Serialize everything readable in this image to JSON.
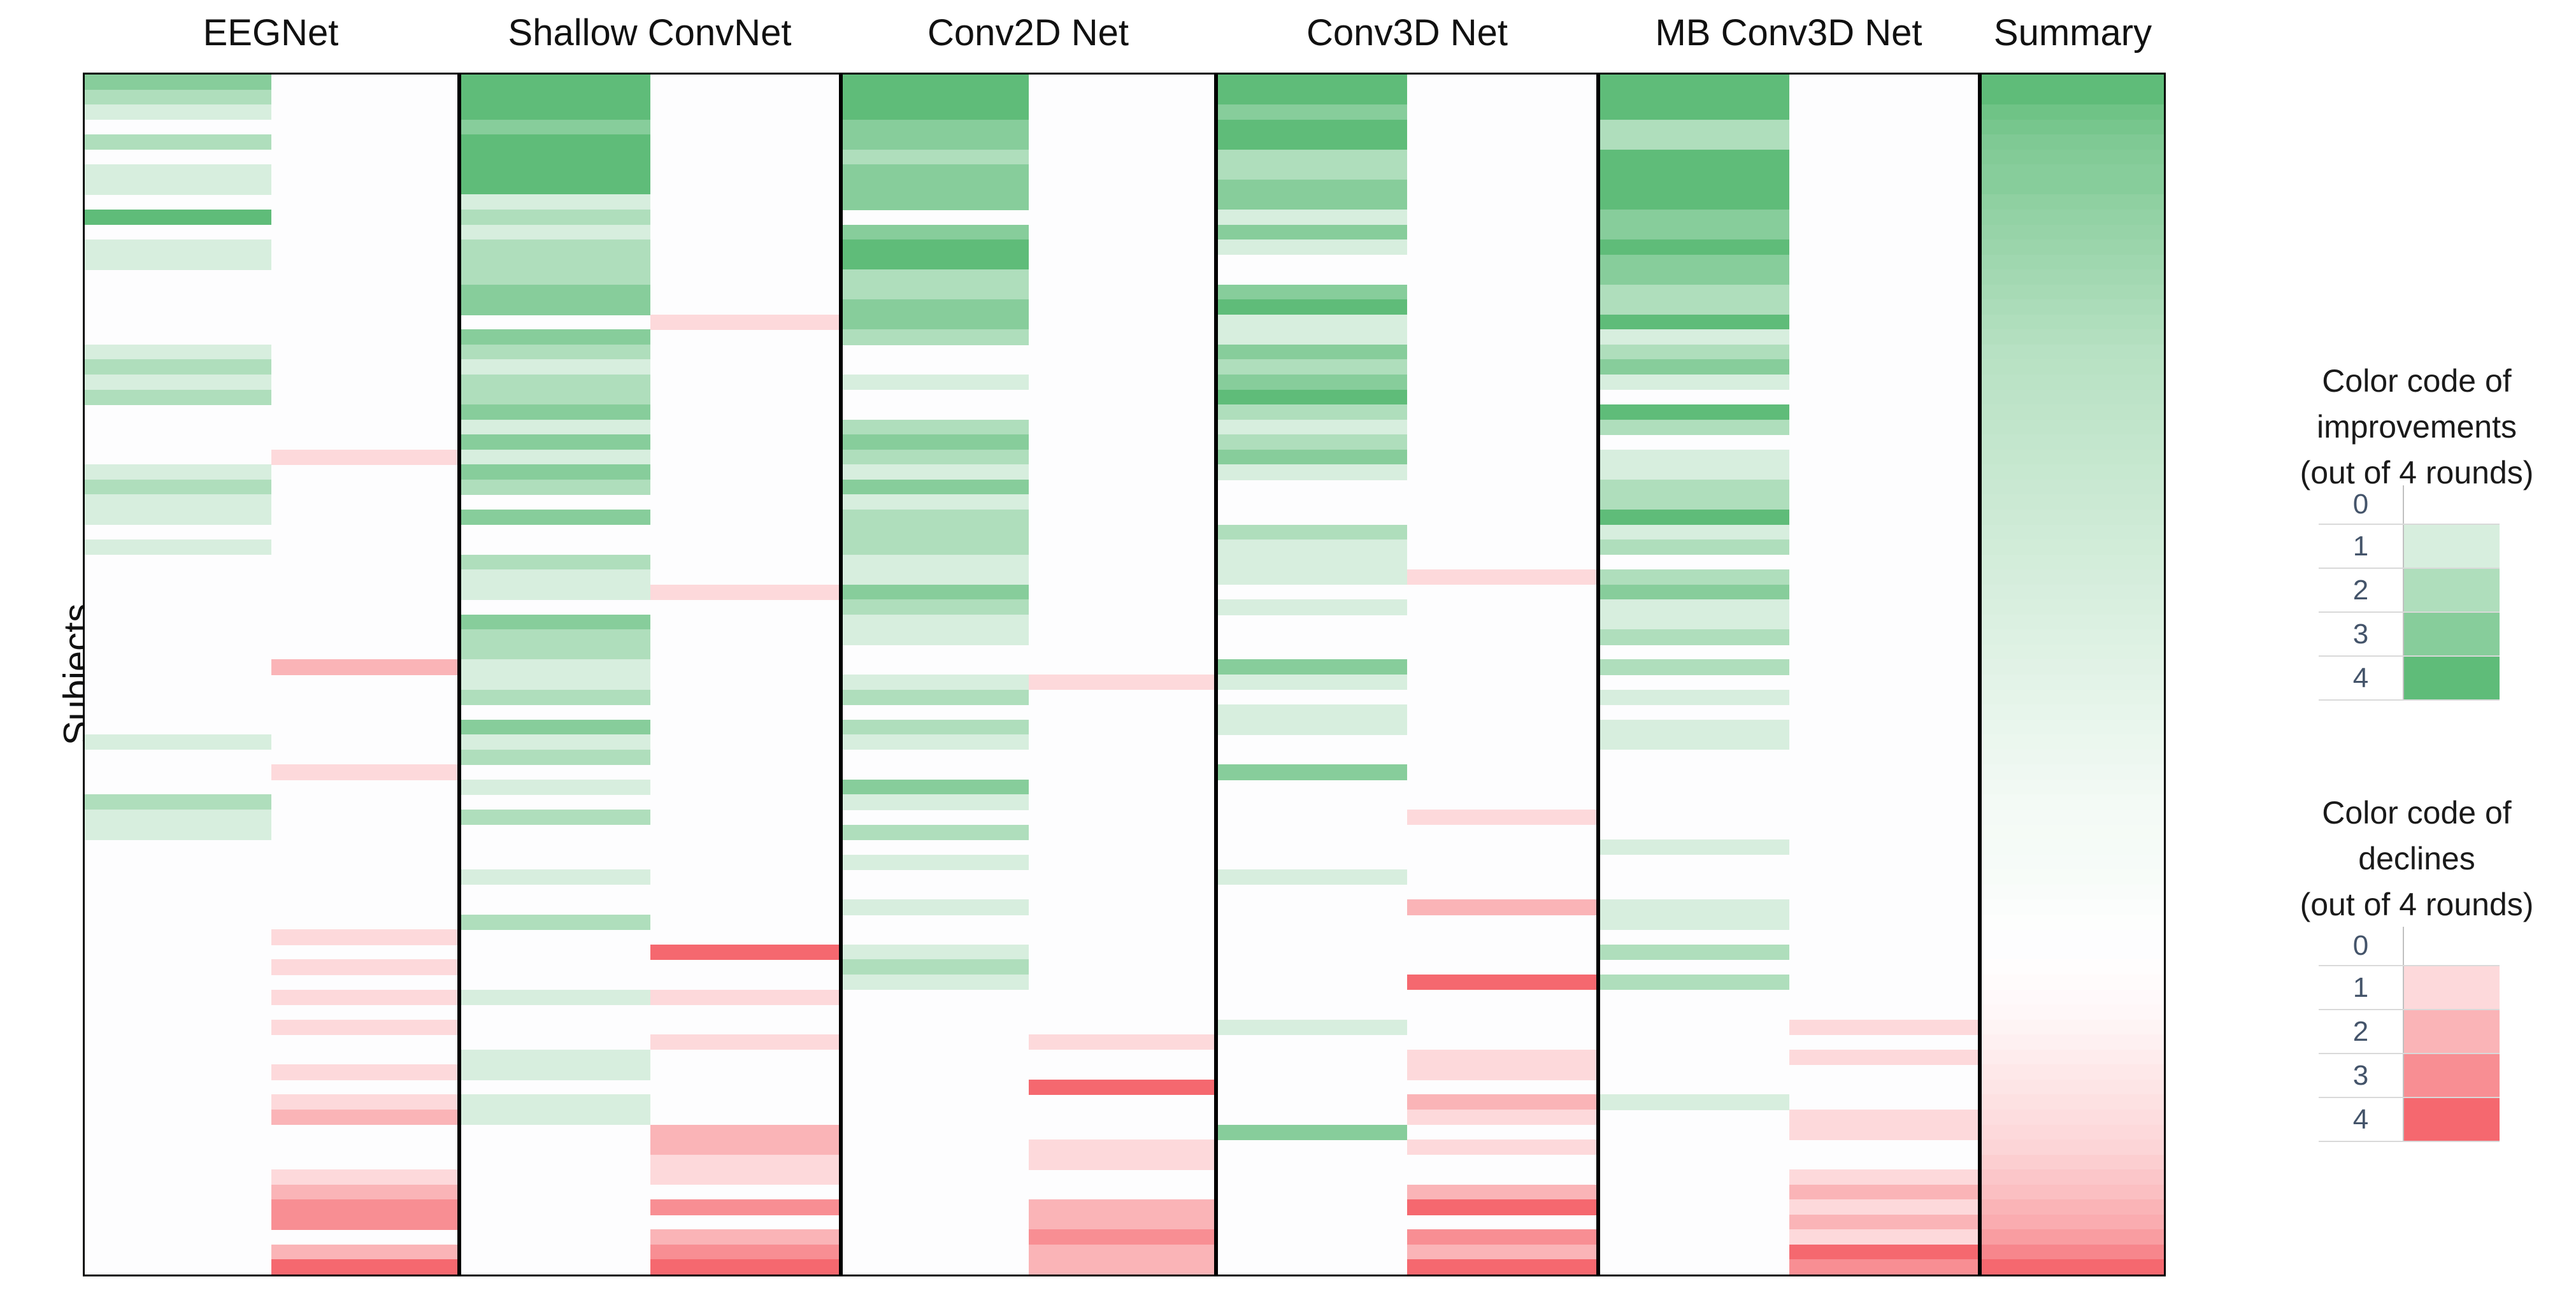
{
  "figure": {
    "y_axis_label": "Subjects",
    "column_titles": [
      "EEGNet",
      "Shallow ConvNet",
      "Conv2D Net",
      "Conv3D Net",
      "MB Conv3D Net",
      "Summary"
    ]
  },
  "legend_improvements": {
    "title_lines": [
      "Color code of",
      "improvements",
      "(out of 4 rounds)"
    ],
    "ticks": [
      "0",
      "1",
      "2",
      "3",
      "4"
    ]
  },
  "legend_declines": {
    "title_lines": [
      "Color code of",
      "declines",
      "(out of 4 rounds)"
    ],
    "ticks": [
      "0",
      "1",
      "2",
      "3",
      "4"
    ]
  },
  "colors": {
    "improvement_max": "#5fbc79",
    "decline_max": "#f5686f",
    "panel_border": "#000000",
    "tick_text": "#44546a",
    "gridline": "#d9d9d9",
    "axis_line": "#c0c0c0",
    "background": "#ffffff"
  },
  "chart_data": {
    "type": "heatmap",
    "ylabel": "Subjects",
    "n_subjects": 80,
    "rounds": 4,
    "value_range": [
      0,
      4
    ],
    "x_columns": [
      "EEGNet",
      "Shallow ConvNet",
      "Conv2D Net",
      "Conv3D Net",
      "MB Conv3D Net",
      "Summary"
    ],
    "models": [
      {
        "name": "EEGNet",
        "improvements": [
          3,
          2,
          1,
          0,
          2,
          0,
          1,
          1,
          0,
          4,
          0,
          1,
          1,
          0,
          0,
          0,
          0,
          0,
          1,
          2,
          1,
          2,
          0,
          0,
          0,
          0,
          1,
          2,
          1,
          1,
          0,
          1,
          0,
          0,
          0,
          0,
          0,
          0,
          0,
          0,
          0,
          0,
          0,
          0,
          1,
          0,
          0,
          0,
          2,
          1,
          1,
          0,
          0,
          0,
          0,
          0,
          0,
          0,
          0,
          0,
          0,
          0,
          0,
          0,
          0,
          0,
          0,
          0,
          0,
          0,
          0,
          0,
          0,
          0,
          0,
          0,
          0,
          0,
          0,
          0
        ],
        "declines": [
          0,
          0,
          0,
          0,
          0,
          0,
          0,
          0,
          0,
          0,
          0,
          0,
          0,
          0,
          0,
          0,
          0,
          0,
          0,
          0,
          0,
          0,
          0,
          0,
          0,
          1,
          0,
          0,
          0,
          0,
          0,
          0,
          0,
          0,
          0,
          0,
          0,
          0,
          0,
          2,
          0,
          0,
          0,
          0,
          0,
          0,
          1,
          0,
          0,
          0,
          0,
          0,
          0,
          0,
          0,
          0,
          0,
          1,
          0,
          1,
          0,
          1,
          0,
          1,
          0,
          0,
          1,
          0,
          1,
          2,
          0,
          0,
          0,
          1,
          2,
          3,
          3,
          0,
          2,
          4
        ]
      },
      {
        "name": "Shallow ConvNet",
        "improvements": [
          4,
          4,
          4,
          3,
          4,
          4,
          4,
          4,
          1,
          2,
          1,
          2,
          2,
          2,
          3,
          3,
          0,
          3,
          2,
          1,
          2,
          2,
          3,
          1,
          3,
          1,
          3,
          2,
          0,
          3,
          0,
          0,
          2,
          1,
          1,
          0,
          3,
          2,
          2,
          1,
          1,
          2,
          0,
          3,
          1,
          2,
          0,
          1,
          0,
          2,
          0,
          0,
          0,
          1,
          0,
          0,
          2,
          0,
          0,
          0,
          0,
          1,
          0,
          0,
          0,
          1,
          1,
          0,
          1,
          1,
          0,
          0,
          0,
          0,
          0,
          0,
          0,
          0,
          0,
          0
        ],
        "declines": [
          0,
          0,
          0,
          0,
          0,
          0,
          0,
          0,
          0,
          0,
          0,
          0,
          0,
          0,
          0,
          0,
          1,
          0,
          0,
          0,
          0,
          0,
          0,
          0,
          0,
          0,
          0,
          0,
          0,
          0,
          0,
          0,
          0,
          0,
          1,
          0,
          0,
          0,
          0,
          0,
          0,
          0,
          0,
          0,
          0,
          0,
          0,
          0,
          0,
          0,
          0,
          0,
          0,
          0,
          0,
          0,
          0,
          0,
          4,
          0,
          0,
          1,
          0,
          0,
          1,
          0,
          0,
          0,
          0,
          0,
          2,
          2,
          1,
          1,
          0,
          3,
          0,
          2,
          3,
          4
        ]
      },
      {
        "name": "Conv2D Net",
        "improvements": [
          4,
          4,
          4,
          3,
          3,
          2,
          3,
          3,
          3,
          0,
          3,
          4,
          4,
          2,
          2,
          3,
          3,
          2,
          0,
          0,
          1,
          0,
          0,
          2,
          3,
          2,
          1,
          3,
          1,
          2,
          2,
          2,
          1,
          1,
          3,
          2,
          1,
          1,
          0,
          0,
          1,
          2,
          0,
          2,
          1,
          0,
          0,
          3,
          1,
          0,
          2,
          0,
          1,
          0,
          0,
          1,
          0,
          0,
          1,
          2,
          1,
          0,
          0,
          0,
          0,
          0,
          0,
          0,
          0,
          0,
          0,
          0,
          0,
          0,
          0,
          0,
          0,
          0,
          0,
          0
        ],
        "declines": [
          0,
          0,
          0,
          0,
          0,
          0,
          0,
          0,
          0,
          0,
          0,
          0,
          0,
          0,
          0,
          0,
          0,
          0,
          0,
          0,
          0,
          0,
          0,
          0,
          0,
          0,
          0,
          0,
          0,
          0,
          0,
          0,
          0,
          0,
          0,
          0,
          0,
          0,
          0,
          0,
          1,
          0,
          0,
          0,
          0,
          0,
          0,
          0,
          0,
          0,
          0,
          0,
          0,
          0,
          0,
          0,
          0,
          0,
          0,
          0,
          0,
          0,
          0,
          0,
          1,
          0,
          0,
          4,
          0,
          0,
          0,
          1,
          1,
          0,
          0,
          2,
          2,
          3,
          2,
          2
        ]
      },
      {
        "name": "Conv3D Net",
        "improvements": [
          4,
          4,
          3,
          4,
          4,
          2,
          2,
          3,
          3,
          1,
          3,
          1,
          0,
          0,
          3,
          4,
          1,
          1,
          3,
          2,
          3,
          4,
          2,
          1,
          2,
          3,
          1,
          0,
          0,
          0,
          2,
          1,
          1,
          1,
          0,
          1,
          0,
          0,
          0,
          3,
          1,
          0,
          1,
          1,
          0,
          0,
          3,
          0,
          0,
          0,
          0,
          0,
          0,
          1,
          0,
          0,
          0,
          0,
          0,
          0,
          0,
          0,
          0,
          1,
          0,
          0,
          0,
          0,
          0,
          0,
          3,
          0,
          0,
          0,
          0,
          0,
          0,
          0,
          0,
          0
        ],
        "declines": [
          0,
          0,
          0,
          0,
          0,
          0,
          0,
          0,
          0,
          0,
          0,
          0,
          0,
          0,
          0,
          0,
          0,
          0,
          0,
          0,
          0,
          0,
          0,
          0,
          0,
          0,
          0,
          0,
          0,
          0,
          0,
          0,
          0,
          1,
          0,
          0,
          0,
          0,
          0,
          0,
          0,
          0,
          0,
          0,
          0,
          0,
          0,
          0,
          0,
          1,
          0,
          0,
          0,
          0,
          0,
          2,
          0,
          0,
          0,
          0,
          4,
          0,
          0,
          0,
          0,
          1,
          1,
          0,
          2,
          1,
          0,
          1,
          0,
          0,
          2,
          4,
          0,
          3,
          2,
          4
        ]
      },
      {
        "name": "MB Conv3D Net",
        "improvements": [
          4,
          4,
          4,
          2,
          2,
          4,
          4,
          4,
          4,
          3,
          3,
          4,
          3,
          3,
          2,
          2,
          4,
          1,
          2,
          3,
          1,
          0,
          4,
          2,
          0,
          1,
          1,
          2,
          2,
          4,
          1,
          2,
          0,
          2,
          3,
          1,
          1,
          2,
          0,
          2,
          0,
          1,
          0,
          1,
          1,
          0,
          0,
          0,
          0,
          0,
          0,
          1,
          0,
          0,
          0,
          1,
          1,
          0,
          2,
          0,
          2,
          0,
          0,
          0,
          0,
          0,
          0,
          0,
          1,
          0,
          0,
          0,
          0,
          0,
          0,
          0,
          0,
          0,
          0,
          0
        ],
        "declines": [
          0,
          0,
          0,
          0,
          0,
          0,
          0,
          0,
          0,
          0,
          0,
          0,
          0,
          0,
          0,
          0,
          0,
          0,
          0,
          0,
          0,
          0,
          0,
          0,
          0,
          0,
          0,
          0,
          0,
          0,
          0,
          0,
          0,
          0,
          0,
          0,
          0,
          0,
          0,
          0,
          0,
          0,
          0,
          0,
          0,
          0,
          0,
          0,
          0,
          0,
          0,
          0,
          0,
          0,
          0,
          0,
          0,
          0,
          0,
          0,
          0,
          0,
          0,
          1,
          0,
          1,
          0,
          0,
          0,
          1,
          1,
          0,
          0,
          1,
          2,
          1,
          2,
          1,
          4,
          3
        ]
      }
    ],
    "summary_net": [
      4,
      4,
      3.6,
      3.4,
      3.2,
      3.1,
      3,
      3,
      2.8,
      2.7,
      2.6,
      2.5,
      2.4,
      2.3,
      2.2,
      2.1,
      2,
      1.9,
      1.8,
      1.75,
      1.7,
      1.65,
      1.6,
      1.55,
      1.5,
      1.45,
      1.4,
      1.35,
      1.3,
      1.25,
      1.2,
      1.15,
      1.1,
      1.05,
      1,
      0.95,
      0.9,
      0.85,
      0.8,
      0.75,
      0.7,
      0.65,
      0.6,
      0.55,
      0.5,
      0.45,
      0.4,
      0.35,
      0.3,
      0.28,
      0.26,
      0.24,
      0.22,
      0.2,
      0.15,
      0.1,
      0.05,
      0,
      0,
      -0.05,
      -0.1,
      -0.15,
      -0.2,
      -0.3,
      -0.4,
      -0.5,
      -0.6,
      -0.7,
      -0.8,
      -0.9,
      -1,
      -1.1,
      -1.3,
      -1.5,
      -1.7,
      -2,
      -2.2,
      -2.6,
      -3.2,
      -4
    ]
  }
}
